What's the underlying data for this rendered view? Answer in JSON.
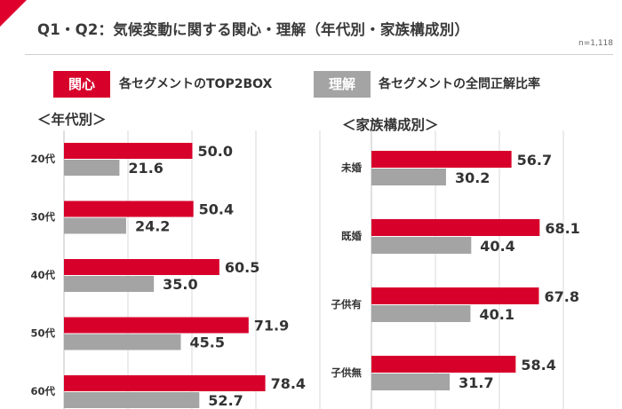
{
  "header": {
    "title": "Q1・Q2：気候変動に関する関心・理解（年代別・家族構成別）",
    "note": "n=1,118"
  },
  "legend": {
    "interest_badge": "関心",
    "interest_text": "各セグメントのTOP2BOX",
    "understanding_badge": "理解",
    "understanding_text": "各セグメントの全問正解比率"
  },
  "colors": {
    "accent": "#e0002d",
    "interest": "#d7002b",
    "understanding": "#a4a4a4",
    "grid": "#d9d9d9"
  },
  "chart_data": [
    {
      "type": "bar",
      "title": "＜年代別＞",
      "categories": [
        "20代",
        "30代",
        "40代",
        "50代",
        "60代"
      ],
      "series": [
        {
          "name": "関心",
          "values": [
            50.0,
            50.4,
            60.5,
            71.9,
            78.4
          ]
        },
        {
          "name": "理解",
          "values": [
            21.6,
            24.2,
            35.0,
            45.5,
            52.7
          ]
        }
      ],
      "xlim": [
        0,
        100
      ],
      "grid": true,
      "orientation": "horizontal"
    },
    {
      "type": "bar",
      "title": "＜家族構成別＞",
      "categories": [
        "未婚",
        "既婚",
        "子供有",
        "子供無"
      ],
      "series": [
        {
          "name": "関心",
          "values": [
            56.7,
            68.1,
            67.8,
            58.4
          ]
        },
        {
          "name": "理解",
          "values": [
            30.2,
            40.4,
            40.1,
            31.7
          ]
        }
      ],
      "xlim": [
        0,
        100
      ],
      "grid": true,
      "orientation": "horizontal"
    }
  ]
}
